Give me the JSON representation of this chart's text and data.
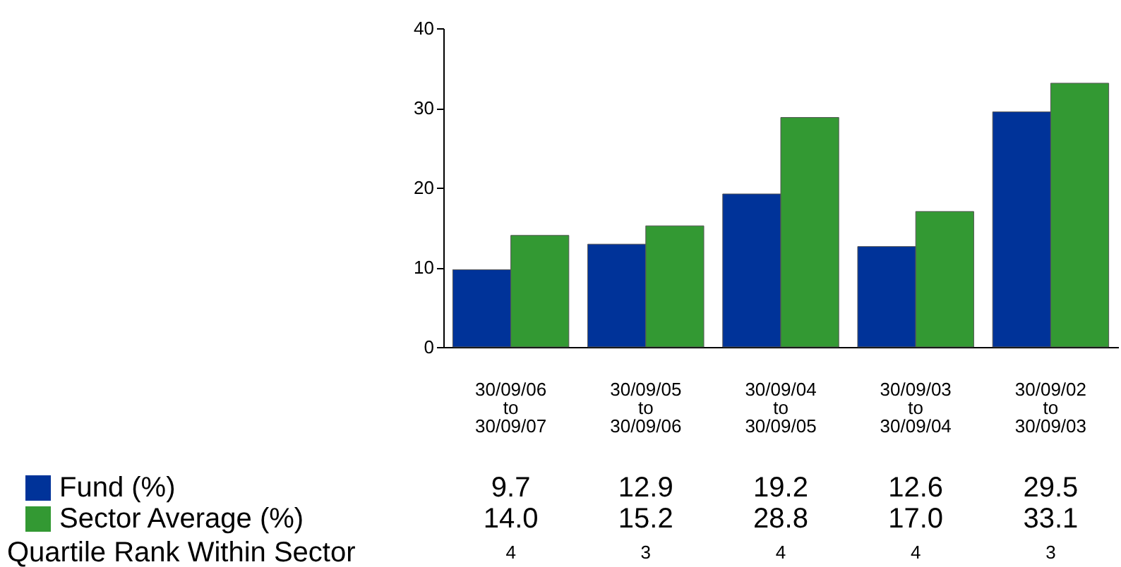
{
  "chart_data": {
    "type": "bar",
    "categories": [
      "30/09/06 to 30/09/07",
      "30/09/05 to 30/09/06",
      "30/09/04 to 30/09/05",
      "30/09/03 to 30/09/04",
      "30/09/02 to 30/09/03"
    ],
    "series": [
      {
        "name": "Fund (%)",
        "color": "#003399",
        "values": [
          9.7,
          12.9,
          19.2,
          12.6,
          29.5
        ],
        "value_labels": [
          "9.7",
          "12.9",
          "19.2",
          "12.6",
          "29.5"
        ]
      },
      {
        "name": "Sector Average (%)",
        "color": "#339933",
        "values": [
          14.0,
          15.2,
          28.8,
          17.0,
          33.1
        ],
        "value_labels": [
          "14.0",
          "15.2",
          "28.8",
          "17.0",
          "33.1"
        ]
      }
    ],
    "ylim": [
      0,
      40
    ],
    "yticks": [
      0,
      10,
      20,
      30,
      40
    ],
    "grid": false,
    "legend": "bottom left",
    "annotations": [
      "Quartile Rank Within Sector",
      "4",
      "3",
      "4",
      "4",
      "3"
    ]
  }
}
